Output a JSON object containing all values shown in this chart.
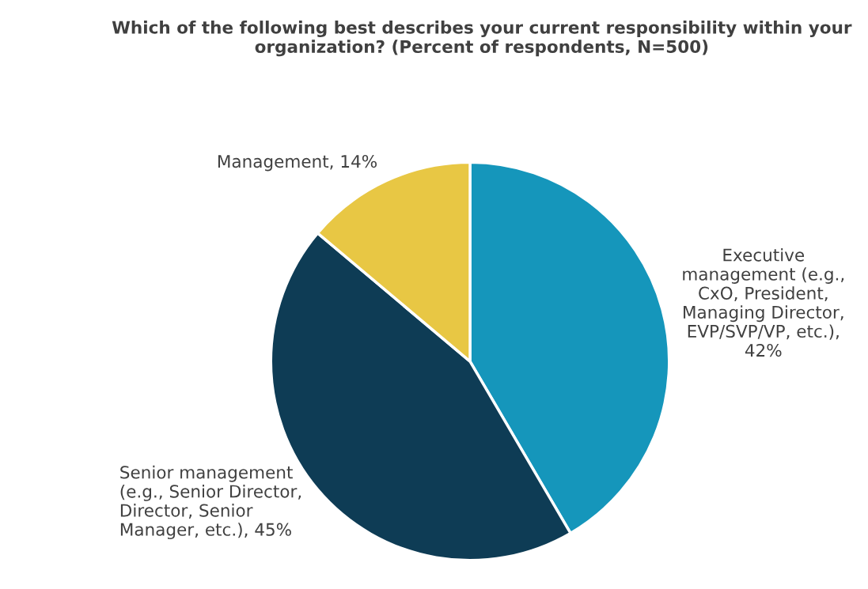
{
  "chart_data": {
    "type": "pie",
    "title": "Which of the following best describes your current responsibility within your\norganization? (Percent of respondents, N=500)",
    "categories": [
      "Executive\nmanagement (e.g.,\nCxO, President,\nManaging Director,\nEVP/SVP/VP, etc.),\n42%",
      "Senior management\n(e.g., Senior Director,\nDirector, Senior\nManager, etc.), 45%",
      "Management, 14%"
    ],
    "values": [
      42,
      45,
      14
    ],
    "colors": [
      "#1596bb",
      "#0e3c55",
      "#e8c744"
    ],
    "legend": false
  }
}
